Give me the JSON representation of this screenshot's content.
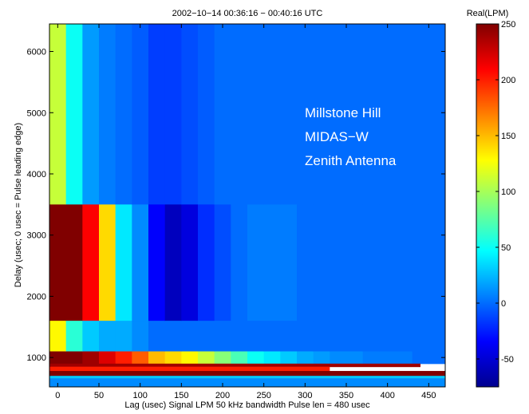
{
  "chart_data": {
    "type": "heatmap",
    "title": "2002−10−14  00:36:16 − 00:40:16 UTC",
    "xlabel": "Lag (usec)  Signal LPM  50 kHz bandwidth  Pulse len = 480 usec",
    "ylabel": "Delay (usec; 0 usec = Pulse leading edge)",
    "xlim": [
      -10,
      470
    ],
    "ylim": [
      520,
      6450
    ],
    "x_ticks": [
      0,
      50,
      100,
      150,
      200,
      250,
      300,
      350,
      400,
      450
    ],
    "y_ticks": [
      1000,
      2000,
      3000,
      4000,
      5000,
      6000
    ],
    "annotations": [
      "Millstone Hill",
      "MIDAS−W",
      "Zenith Antenna"
    ],
    "colorbar": {
      "label": "Real(LPM)",
      "range": [
        -75,
        250
      ],
      "ticks": [
        250,
        200,
        150,
        100,
        50,
        0,
        -50
      ],
      "colormap": "jet"
    },
    "lag_bin_width_usec": 20,
    "lag_bins_usec": [
      0,
      20,
      40,
      60,
      80,
      100,
      120,
      140,
      160,
      180,
      200,
      220,
      240,
      260,
      280,
      300,
      320,
      340,
      360,
      380,
      400,
      420,
      440,
      460
    ],
    "profiles": [
      {
        "lag": 0,
        "above_3500": 110,
        "from_1600_to_3500": 250,
        "from_1100_to_1600": 130,
        "from_900_to_1100": 250
      },
      {
        "lag": 20,
        "above_3500": 50,
        "from_1600_to_3500": 250,
        "from_1100_to_1600": 60,
        "from_900_to_1100": 250
      },
      {
        "lag": 40,
        "above_3500": 15,
        "from_1600_to_3500": 210,
        "from_1100_to_1600": 30,
        "from_900_to_1100": 240
      },
      {
        "lag": 60,
        "above_3500": 5,
        "from_1600_to_3500": 140,
        "from_1100_to_1600": 20,
        "from_900_to_1100": 220
      },
      {
        "lag": 80,
        "above_3500": 0,
        "from_1600_to_3500": 40,
        "from_1100_to_1600": 20,
        "from_900_to_1100": 200
      },
      {
        "lag": 100,
        "above_3500": -5,
        "from_1600_to_3500": 10,
        "from_1100_to_1600": 10,
        "from_900_to_1100": 180
      },
      {
        "lag": 120,
        "above_3500": -15,
        "from_1600_to_3500": -35,
        "from_1100_to_1600": 0,
        "from_900_to_1100": 150
      },
      {
        "lag": 140,
        "above_3500": -15,
        "from_1600_to_3500": -55,
        "from_1100_to_1600": 0,
        "from_900_to_1100": 140
      },
      {
        "lag": 160,
        "above_3500": -10,
        "from_1600_to_3500": -45,
        "from_1100_to_1600": 0,
        "from_900_to_1100": 130
      },
      {
        "lag": 180,
        "above_3500": -5,
        "from_1600_to_3500": -20,
        "from_1100_to_1600": 0,
        "from_900_to_1100": 110
      },
      {
        "lag": 200,
        "above_3500": 0,
        "from_1600_to_3500": -10,
        "from_1100_to_1600": 0,
        "from_900_to_1100": 90
      },
      {
        "lag": 220,
        "above_3500": 0,
        "from_1600_to_3500": 0,
        "from_1100_to_1600": 0,
        "from_900_to_1100": 70
      },
      {
        "lag": 240,
        "above_3500": 0,
        "from_1600_to_3500": 5,
        "from_1100_to_1600": 0,
        "from_900_to_1100": 50
      },
      {
        "lag": 260,
        "above_3500": 0,
        "from_1600_to_3500": 5,
        "from_1100_to_1600": 0,
        "from_900_to_1100": 40
      },
      {
        "lag": 280,
        "above_3500": 0,
        "from_1600_to_3500": 5,
        "from_1100_to_1600": 0,
        "from_900_to_1100": 30
      },
      {
        "lag": 300,
        "above_3500": 0,
        "from_1600_to_3500": 0,
        "from_1100_to_1600": 0,
        "from_900_to_1100": 20
      },
      {
        "lag": 320,
        "above_3500": 0,
        "from_1600_to_3500": 0,
        "from_1100_to_1600": 0,
        "from_900_to_1100": 15
      },
      {
        "lag": 340,
        "above_3500": 0,
        "from_1600_to_3500": 0,
        "from_1100_to_1600": 0,
        "from_900_to_1100": 10
      },
      {
        "lag": 360,
        "above_3500": 0,
        "from_1600_to_3500": 0,
        "from_1100_to_1600": 0,
        "from_900_to_1100": 10
      },
      {
        "lag": 380,
        "above_3500": 0,
        "from_1600_to_3500": 0,
        "from_1100_to_1600": 0,
        "from_900_to_1100": 5
      },
      {
        "lag": 400,
        "above_3500": 0,
        "from_1600_to_3500": 0,
        "from_1100_to_1600": 0,
        "from_900_to_1100": 5
      },
      {
        "lag": 420,
        "above_3500": 0,
        "from_1600_to_3500": 0,
        "from_1100_to_1600": 0,
        "from_900_to_1100": 5
      },
      {
        "lag": 440,
        "above_3500": 0,
        "from_1600_to_3500": 0,
        "from_1100_to_1600": 0,
        "from_900_to_1100": 0
      },
      {
        "lag": 460,
        "above_3500": 0,
        "from_1600_to_3500": 0,
        "from_1100_to_1600": 0,
        "from_900_to_1100": 0
      }
    ],
    "low_delay_bands": [
      {
        "delay": [
          850,
          900
        ],
        "value": 240,
        "max_lag": 440
      },
      {
        "delay": [
          780,
          850
        ],
        "value": 200,
        "max_lag": 330
      },
      {
        "delay": [
          700,
          780
        ],
        "value": 250,
        "max_lag": 470
      },
      {
        "delay": [
          660,
          700
        ],
        "value": 30,
        "max_lag": 470
      },
      {
        "delay": [
          520,
          660
        ],
        "value": 10,
        "max_lag": 470
      }
    ]
  }
}
